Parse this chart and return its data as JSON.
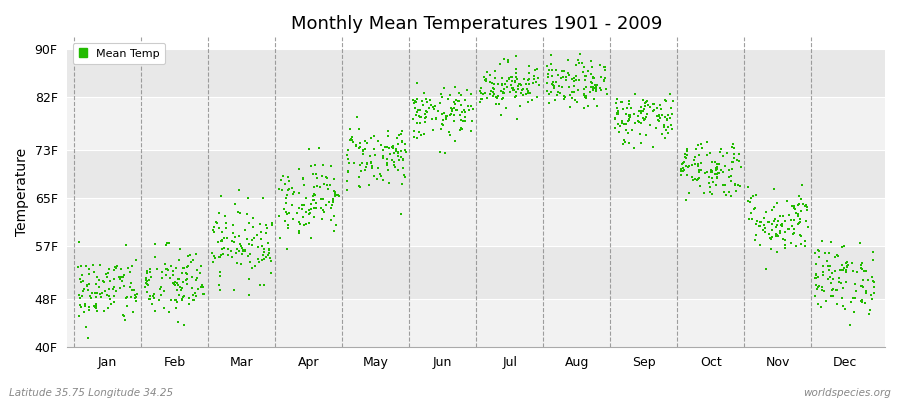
{
  "title": "Monthly Mean Temperatures 1901 - 2009",
  "ylabel": "Temperature",
  "subtitle_left": "Latitude 35.75 Longitude 34.25",
  "subtitle_right": "worldspecies.org",
  "legend_label": "Mean Temp",
  "background_color": "#ffffff",
  "plot_bg_color": "#ffffff",
  "dot_color": "#22bb00",
  "dot_size": 2.5,
  "ylim": [
    40,
    92
  ],
  "yticks": [
    40,
    48,
    57,
    65,
    73,
    82,
    90
  ],
  "ytick_labels": [
    "40F",
    "48F",
    "57F",
    "65F",
    "73F",
    "82F",
    "90F"
  ],
  "band_colors": [
    "#f0f0f0",
    "#e8e8e8"
  ],
  "months": [
    "Jan",
    "Feb",
    "Mar",
    "Apr",
    "May",
    "Jun",
    "Jul",
    "Aug",
    "Sep",
    "Oct",
    "Nov",
    "Dec"
  ],
  "month_means_F": [
    49.5,
    50.5,
    57.5,
    65.0,
    72.0,
    79.0,
    84.0,
    84.0,
    78.5,
    70.0,
    61.0,
    51.5
  ],
  "month_stds_F": [
    3.0,
    3.2,
    3.2,
    3.2,
    2.8,
    2.2,
    2.0,
    2.0,
    2.2,
    2.5,
    2.8,
    3.0
  ],
  "n_years": 109,
  "seed": 42
}
